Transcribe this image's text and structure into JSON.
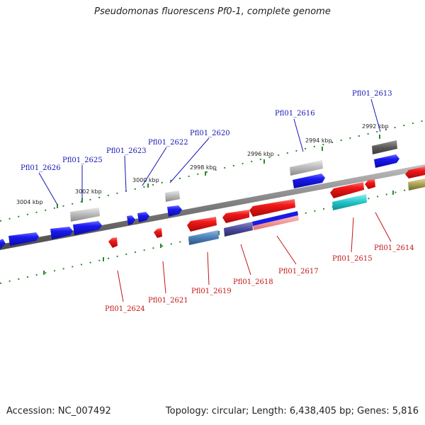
{
  "header": {
    "title": "Pseudomonas fluorescens Pf0-1, complete genome"
  },
  "footer": {
    "accession": "Accession: NC_007492",
    "stats": "Topology: circular; Length: 6,438,405 bp; Genes: 5,816"
  },
  "ticks": [
    "3004 kbp",
    "3002 kbp",
    "3000 kbp",
    "2998 kbp",
    "2996 kbp",
    "2994 kbp",
    "2992 kbp"
  ],
  "top_labels": [
    "Pfl01_2626",
    "Pfl01_2625",
    "Pfl01_2623",
    "Pfl01_2622",
    "Pfl01_2620",
    "Pfl01_2616",
    "Pfl01_2613"
  ],
  "bottom_labels": [
    "Pfl01_2624",
    "Pfl01_2621",
    "Pfl01_2619",
    "Pfl01_2618",
    "Pfl01_2617",
    "Pfl01_2615",
    "Pfl01_2614"
  ],
  "colors": {
    "forward_gene": "#1414e6",
    "reverse_gene": "#e61414",
    "backbone": "#7a7a7a",
    "tick_mark": "#2a8a2a",
    "grey_feature": "#a8a8a8",
    "cyan_feature": "#22c4c8",
    "steelblue_feature": "#4a7fb8",
    "navy_feature": "#4a4a9a",
    "olive_feature": "#a8a050"
  }
}
